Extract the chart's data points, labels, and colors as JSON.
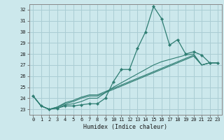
{
  "title": "",
  "xlabel": "Humidex (Indice chaleur)",
  "background_color": "#cce8ec",
  "grid_color": "#aacdd4",
  "line_color": "#2e7d72",
  "xlim": [
    -0.5,
    23.5
  ],
  "ylim": [
    22.5,
    32.5
  ],
  "xticks": [
    0,
    1,
    2,
    3,
    4,
    5,
    6,
    7,
    8,
    9,
    10,
    11,
    12,
    13,
    14,
    15,
    16,
    17,
    18,
    19,
    20,
    21,
    22,
    23
  ],
  "yticks": [
    23,
    24,
    25,
    26,
    27,
    28,
    29,
    30,
    31,
    32
  ],
  "series_main": [
    24.2,
    23.3,
    23.0,
    23.1,
    23.3,
    23.3,
    23.4,
    23.5,
    23.5,
    24.0,
    25.5,
    26.6,
    26.6,
    28.5,
    30.0,
    32.3,
    31.2,
    28.8,
    29.3,
    28.0,
    28.2,
    27.9,
    27.2,
    27.2
  ],
  "series_others": [
    [
      24.2,
      23.3,
      23.0,
      23.1,
      23.4,
      23.5,
      23.7,
      24.0,
      24.0,
      24.5,
      25.0,
      25.4,
      25.8,
      26.2,
      26.6,
      27.0,
      27.3,
      27.5,
      27.7,
      27.9,
      28.0,
      27.0,
      27.2,
      27.2
    ],
    [
      24.2,
      23.3,
      23.0,
      23.2,
      23.5,
      23.7,
      24.0,
      24.2,
      24.2,
      24.5,
      24.8,
      25.1,
      25.4,
      25.7,
      26.0,
      26.3,
      26.6,
      26.9,
      27.2,
      27.5,
      27.8,
      27.0,
      27.2,
      27.2
    ],
    [
      24.2,
      23.3,
      23.0,
      23.2,
      23.6,
      23.8,
      24.1,
      24.3,
      24.3,
      24.6,
      24.9,
      25.2,
      25.5,
      25.8,
      26.1,
      26.4,
      26.7,
      27.0,
      27.3,
      27.6,
      27.9,
      27.0,
      27.2,
      27.2
    ]
  ]
}
